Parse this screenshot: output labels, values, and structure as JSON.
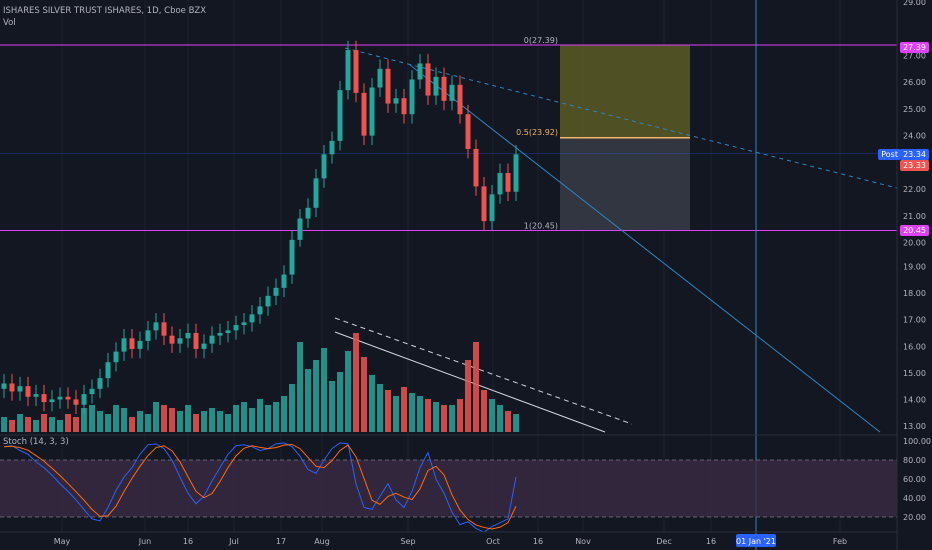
{
  "header": {
    "title": "ISHARES SILVER TRUST ISHARES, 1D, Cboe BZX",
    "volume_label": "Vol"
  },
  "stoch_label": "Stoch (14, 3, 3)",
  "price_tags": [
    {
      "text": "27.39",
      "color": "#e040fb"
    },
    {
      "text": "Post",
      "color": "#2962ff"
    },
    {
      "text": "23.34",
      "color": "#2962ff"
    },
    {
      "text": "23.33",
      "color": "#ef5350"
    },
    {
      "text": "20.45",
      "color": "#e040fb"
    }
  ],
  "colors": {
    "up": "#26a69a",
    "down": "#ef5350",
    "horizontal": "#e040fb",
    "trend": "#2e86c1",
    "fib_upper": "#5b5a23",
    "fib_lower": "#363a45",
    "fib_mid": "#f0b46a",
    "stoch_band": "#3a2a44"
  },
  "chart_data": {
    "type": "candlestick",
    "price_axis": {
      "ticks": [
        "29.00",
        "27.00",
        "26.00",
        "25.00",
        "24.00",
        "23.00",
        "22.00",
        "21.00",
        "20.00",
        "19.00",
        "18.00",
        "17.00",
        "16.00",
        "15.00",
        "14.00",
        "13.00"
      ],
      "min": 13,
      "max": 29
    },
    "stoch_axis": {
      "ticks": [
        "100.00",
        "80.00",
        "60.00",
        "40.00",
        "20.00"
      ],
      "min": 0,
      "max": 100,
      "band": [
        20,
        80
      ]
    },
    "time_axis": [
      "May",
      "Jun",
      "16",
      "Jul",
      "17",
      "Aug",
      "Sep",
      "Oct",
      "16",
      "Nov",
      "Dec",
      "16",
      "01 Jan '21",
      "Feb"
    ],
    "fib_labels": [
      "0(27.39)",
      "0.5(23.92)",
      "1(20.45)"
    ],
    "levels": {
      "top": 27.39,
      "mid": 23.92,
      "bottom": 20.45,
      "last": 23.34
    },
    "closes": [
      14.6,
      14.3,
      14.5,
      14.1,
      14.2,
      13.9,
      14.0,
      14.1,
      14.0,
      13.8,
      14.2,
      14.4,
      14.8,
      15.4,
      15.8,
      16.3,
      15.9,
      16.2,
      16.6,
      16.9,
      16.4,
      16.1,
      16.3,
      16.5,
      15.9,
      16.1,
      16.4,
      16.5,
      16.6,
      16.8,
      16.9,
      17.2,
      17.5,
      17.9,
      18.2,
      18.7,
      20.1,
      20.9,
      21.3,
      22.4,
      23.3,
      23.8,
      25.7,
      27.2,
      25.6,
      24.0,
      25.8,
      26.5,
      25.2,
      25.4,
      24.8,
      26.1,
      26.7,
      25.5,
      26.2,
      25.3,
      25.9,
      24.8,
      23.5,
      22.1,
      20.8,
      21.8,
      22.6,
      21.9,
      23.3
    ],
    "volumes": [
      5,
      4,
      6,
      5,
      4,
      6,
      5,
      4,
      6,
      5,
      8,
      9,
      7,
      6,
      9,
      8,
      5,
      7,
      6,
      10,
      9,
      8,
      7,
      9,
      6,
      7,
      8,
      7,
      6,
      9,
      10,
      8,
      11,
      9,
      10,
      12,
      16,
      30,
      21,
      24,
      28,
      17,
      20,
      27,
      33,
      25,
      19,
      16,
      14,
      12,
      15,
      13,
      12,
      11,
      10,
      9,
      9,
      11,
      24,
      30,
      14,
      11,
      9,
      7,
      6
    ],
    "stoch_k": [
      94,
      95,
      90,
      86,
      78,
      72,
      64,
      55,
      47,
      38,
      28,
      18,
      16,
      30,
      48,
      62,
      72,
      86,
      96,
      97,
      92,
      80,
      62,
      45,
      34,
      42,
      58,
      72,
      86,
      95,
      96,
      94,
      90,
      92,
      97,
      98,
      94,
      84,
      70,
      66,
      80,
      92,
      98,
      97,
      55,
      30,
      28,
      42,
      55,
      38,
      30,
      47,
      72,
      88,
      60,
      45,
      25,
      12,
      15,
      8,
      4,
      10,
      14,
      18,
      62
    ]
  }
}
